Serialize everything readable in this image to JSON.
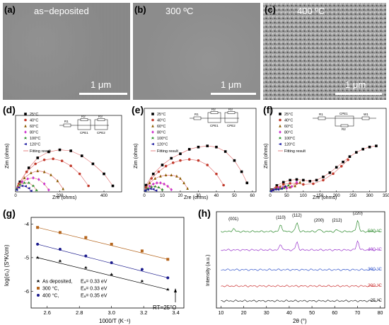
{
  "sem": [
    {
      "letter": "(a)",
      "condition": "as−deposited",
      "scale": "1 μm"
    },
    {
      "letter": "(b)",
      "condition": "300 ºC",
      "scale": "1 μm"
    },
    {
      "letter": "(c)",
      "condition": "400 ºC",
      "scale": "1 μm"
    }
  ],
  "panel_d": {
    "letter": "(d)",
    "ylabel": "Zim (ohms)",
    "xlabel": "Zre (ohms)",
    "xticks": [
      "0",
      "200",
      "400"
    ],
    "legend": [
      "25°C",
      "40°C",
      "60°C",
      "80°C",
      "100°C",
      "120°C"
    ],
    "fit_label": "Fitting result",
    "circuit": [
      "R1",
      "R2",
      "R3",
      "CPE1",
      "CPE2"
    ]
  },
  "panel_e": {
    "letter": "(e)",
    "ylabel": "Zim (ohms)",
    "xlabel": "Zre (ohms)",
    "xticks": [
      "0",
      "10",
      "20",
      "30",
      "40",
      "50",
      "60"
    ],
    "legend": [
      "25°C",
      "40°C",
      "60°C",
      "80°C",
      "100°C",
      "120°C"
    ],
    "fit_label": "Fitting result",
    "circuit": [
      "R1",
      "R2",
      "R3",
      "CPE1",
      "CPE2"
    ]
  },
  "panel_f": {
    "letter": "(f)",
    "ylabel": "Zim (ohms)",
    "xlabel": "Zre (ohms)",
    "xticks": [
      "0",
      "50",
      "100",
      "150",
      "200",
      "250",
      "300",
      "350"
    ],
    "legend": [
      "25°C",
      "40°C",
      "60°C",
      "80°C",
      "100°C",
      "120°C"
    ],
    "fit_label": "Fitting result",
    "circuit": [
      "R1",
      "CPE1",
      "W1",
      "R2"
    ]
  },
  "panel_g": {
    "letter": "(g)",
    "ylabel": "log(σ₀) (S*K/cm)",
    "xlabel": "1000/T (K⁻¹)",
    "xticks": [
      "2.6",
      "2.8",
      "3.0",
      "3.2",
      "3.4"
    ],
    "yticks": [
      "-4",
      "-5",
      "-6"
    ],
    "annotation": "RT=25°C",
    "legend": [
      {
        "name": "As deposited,",
        "ea": "Eₐ= 0.33 eV"
      },
      {
        "name": "300 °C,",
        "ea": "Eₐ= 0.33 eV"
      },
      {
        "name": "400 °C,",
        "ea": "Eₐ= 0.35 eV"
      }
    ]
  },
  "panel_h": {
    "letter": "(h)",
    "ylabel": "Intensity (a.u.)",
    "xlabel": "2θ (°)",
    "xticks": [
      "10",
      "20",
      "30",
      "40",
      "50",
      "60",
      "70",
      "80"
    ],
    "peaks": [
      "(001)",
      "(110)",
      "(112)",
      "(200)",
      "(212)",
      "(220)"
    ],
    "traces": [
      "500 °C",
      "400 °C",
      "300 °C",
      "200 °C",
      "25 °C"
    ]
  },
  "colors": {
    "c25": "#000000",
    "c40": "#c0392b",
    "c60": "#8b5a00",
    "c80": "#cc33cc",
    "c100": "#1f8a1f",
    "c120": "#1a1aa0",
    "fit": "#e06666",
    "g_asdep": "#000000",
    "g_300": "#b5651d",
    "g_400": "#1a1a8c",
    "h_500": "#2e8b2e",
    "h_400": "#9933cc",
    "h_300": "#3355cc",
    "h_200": "#cc3333",
    "h_25": "#222222"
  },
  "chart_data": [
    {
      "type": "scatter",
      "panel": "(d)",
      "xlabel": "Zre (ohms)",
      "ylabel": "Zim (ohms)",
      "xlim": [
        0,
        480
      ],
      "series": [
        {
          "name": "25°C",
          "x": [
            20,
            60,
            100,
            150,
            200,
            250,
            300,
            350,
            400,
            440
          ],
          "y": [
            50,
            120,
            170,
            200,
            210,
            205,
            180,
            140,
            90,
            30
          ]
        },
        {
          "name": "40°C",
          "x": [
            15,
            50,
            90,
            130,
            170,
            210,
            250,
            290,
            330
          ],
          "y": [
            40,
            100,
            140,
            160,
            165,
            155,
            130,
            90,
            30
          ]
        },
        {
          "name": "60°C",
          "x": [
            10,
            40,
            70,
            100,
            130,
            160,
            190,
            215
          ],
          "y": [
            30,
            70,
            95,
            105,
            100,
            85,
            55,
            15
          ]
        },
        {
          "name": "80°C",
          "x": [
            8,
            30,
            55,
            80,
            105,
            130,
            150
          ],
          "y": [
            20,
            50,
            65,
            70,
            62,
            40,
            10
          ]
        },
        {
          "name": "100°C",
          "x": [
            6,
            20,
            40,
            60,
            80,
            95
          ],
          "y": [
            15,
            35,
            45,
            45,
            30,
            8
          ]
        },
        {
          "name": "120°C",
          "x": [
            5,
            15,
            30,
            45,
            60,
            70
          ],
          "y": [
            10,
            22,
            30,
            28,
            18,
            5
          ]
        }
      ]
    },
    {
      "type": "scatter",
      "panel": "(e)",
      "xlabel": "Zre (ohms)",
      "ylabel": "Zim (ohms)",
      "xlim": [
        0,
        62
      ],
      "series": [
        {
          "name": "25°C",
          "x": [
            1,
            5,
            10,
            15,
            20,
            25,
            30,
            35,
            40,
            45,
            50,
            54,
            57
          ],
          "y": [
            3,
            8,
            12,
            15,
            17,
            19,
            20,
            20.5,
            20,
            18,
            14,
            9,
            4
          ]
        },
        {
          "name": "40°C",
          "x": [
            1,
            4,
            8,
            12,
            16,
            20,
            25,
            30,
            35,
            40,
            44
          ],
          "y": [
            2,
            6,
            9,
            11.5,
            13,
            14,
            14.5,
            14,
            12,
            8,
            3
          ]
        },
        {
          "name": "60°C",
          "x": [
            1,
            3,
            6,
            9,
            12,
            15,
            18,
            20,
            22,
            24
          ],
          "y": [
            1.5,
            4,
            6,
            7,
            7.5,
            7.5,
            7,
            6,
            4,
            1.5
          ]
        },
        {
          "name": "80°C",
          "x": [
            1,
            3,
            5,
            7,
            9,
            11,
            13,
            15
          ],
          "y": [
            1,
            2.5,
            3.5,
            4,
            4,
            3.5,
            2.5,
            1
          ]
        },
        {
          "name": "100°C",
          "x": [
            1,
            2,
            4,
            6,
            8,
            10
          ],
          "y": [
            0.8,
            1.5,
            2.2,
            2.4,
            2,
            1
          ]
        },
        {
          "name": "120°C",
          "x": [
            0.5,
            2,
            3.5,
            5,
            6.5
          ],
          "y": [
            0.5,
            1,
            1.4,
            1.2,
            0.6
          ]
        }
      ]
    },
    {
      "type": "scatter",
      "panel": "(f)",
      "xlabel": "Zre (ohms)",
      "ylabel": "Zim (ohms)",
      "xlim": [
        0,
        350
      ],
      "series": [
        {
          "name": "25°C",
          "x": [
            5,
            20,
            40,
            60,
            80,
            100,
            120,
            140,
            160,
            180,
            200,
            220,
            240,
            260,
            280,
            300,
            320
          ],
          "y": [
            10,
            30,
            45,
            55,
            58,
            55,
            50,
            55,
            70,
            90,
            115,
            140,
            165,
            185,
            200,
            210,
            215
          ]
        },
        {
          "name": "40°C",
          "x": [
            5,
            20,
            40,
            60,
            80,
            100,
            130,
            160,
            190,
            215,
            235
          ],
          "y": [
            8,
            22,
            35,
            40,
            40,
            35,
            38,
            55,
            85,
            120,
            150
          ]
        },
        {
          "name": "60°C",
          "x": [
            3,
            15,
            30,
            45,
            60,
            75,
            90
          ],
          "y": [
            6,
            16,
            24,
            26,
            22,
            28,
            45
          ]
        },
        {
          "name": "80°C",
          "x": [
            3,
            12,
            25,
            38,
            50,
            65,
            80
          ],
          "y": [
            5,
            13,
            19,
            20,
            17,
            25,
            45
          ]
        },
        {
          "name": "100°C",
          "x": [
            2,
            10,
            20,
            30,
            42,
            55
          ],
          "y": [
            4,
            10,
            14,
            14,
            18,
            30
          ]
        },
        {
          "name": "120°C",
          "x": [
            2,
            8,
            16,
            24,
            34,
            45
          ],
          "y": [
            3,
            8,
            11,
            11,
            15,
            25
          ]
        }
      ]
    },
    {
      "type": "scatter",
      "panel": "(g)",
      "xlabel": "1000/T (K⁻¹)",
      "ylabel": "log(σ₀) (S*K/cm)",
      "xlim": [
        2.5,
        3.45
      ],
      "ylim": [
        -6.5,
        -3.8
      ],
      "series": [
        {
          "name": "As deposited, Eₐ= 0.33 eV",
          "x": [
            2.54,
            2.68,
            2.84,
            3.0,
            3.19,
            3.35
          ],
          "y": [
            -5.0,
            -5.1,
            -5.3,
            -5.5,
            -5.7,
            -5.95
          ]
        },
        {
          "name": "300 °C, Eₐ= 0.33 eV",
          "x": [
            2.54,
            2.68,
            2.84,
            3.0,
            3.19,
            3.35
          ],
          "y": [
            -4.1,
            -4.25,
            -4.4,
            -4.6,
            -4.8,
            -5.05
          ]
        },
        {
          "name": "400 °C, Eₐ= 0.35 eV",
          "x": [
            2.54,
            2.68,
            2.84,
            3.0,
            3.19,
            3.35
          ],
          "y": [
            -4.6,
            -4.75,
            -4.95,
            -5.15,
            -5.35,
            -5.6
          ]
        }
      ]
    },
    {
      "type": "line",
      "panel": "(h)",
      "xlabel": "2θ (°)",
      "ylabel": "Intensity (a.u.)",
      "xlim": [
        8,
        82
      ],
      "peak_positions": [
        15.5,
        36.3,
        43.4,
        53.1,
        61.0,
        70.1
      ],
      "series": [
        {
          "name": "500 °C",
          "offset": 4,
          "peaks": [
            [
              15.5,
              0.25
            ],
            [
              36.3,
              0.6
            ],
            [
              43.4,
              0.8
            ],
            [
              53.1,
              0.2
            ],
            [
              61.0,
              0.15
            ],
            [
              70.1,
              1.0
            ]
          ]
        },
        {
          "name": "400 °C",
          "offset": 3,
          "peaks": [
            [
              36.3,
              0.5
            ],
            [
              43.4,
              0.7
            ],
            [
              70.1,
              0.8
            ]
          ]
        },
        {
          "name": "300 °C",
          "offset": 2,
          "peaks": []
        },
        {
          "name": "200 °C",
          "offset": 1,
          "peaks": []
        },
        {
          "name": "25 °C",
          "offset": 0,
          "peaks": []
        }
      ]
    }
  ]
}
